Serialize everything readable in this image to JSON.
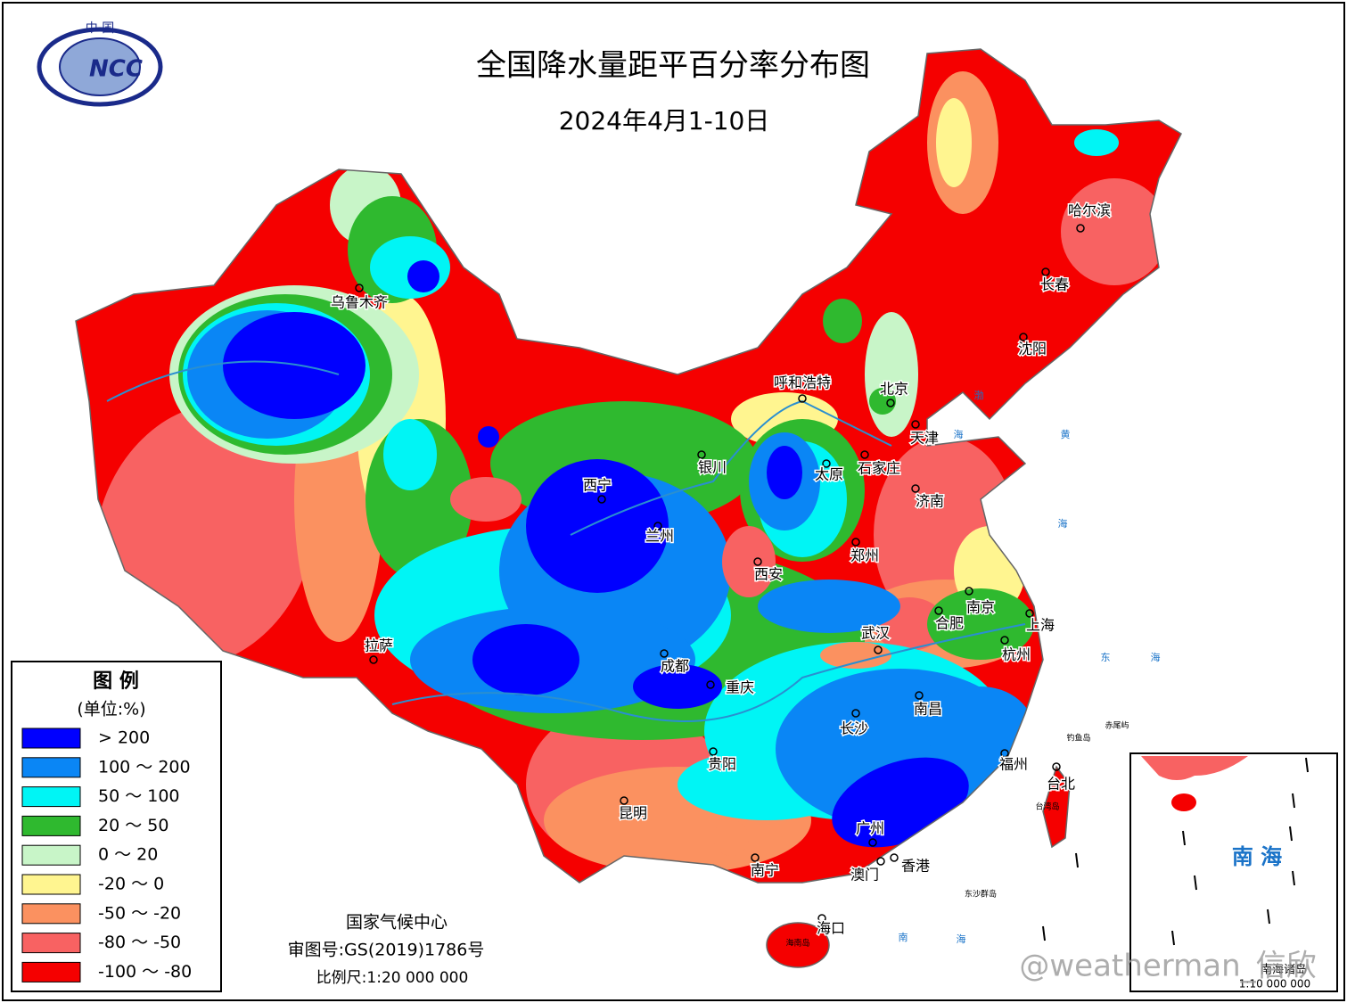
{
  "header": {
    "title": "全国降水量距平百分率分布图",
    "subtitle": "2024年4月1-10日",
    "logo_top": "中 国",
    "logo_text": "NCC"
  },
  "legend": {
    "title": "图 例",
    "unit": "(单位:%)",
    "items": [
      {
        "label": "> 200",
        "color": "#0000ff"
      },
      {
        "label": "100 ～ 200",
        "color": "#0a86f5"
      },
      {
        "label": "50 ～ 100",
        "color": "#00f5f5"
      },
      {
        "label": "20 ～ 50",
        "color": "#2fb92f"
      },
      {
        "label": "0 ～ 20",
        "color": "#c8f5c8"
      },
      {
        "label": "-20 ～ 0",
        "color": "#fff590"
      },
      {
        "label": "-50 ～ -20",
        "color": "#fb9160"
      },
      {
        "label": "-80 ～ -50",
        "color": "#f86262"
      },
      {
        "label": "-100 ～ -80",
        "color": "#f50000"
      }
    ]
  },
  "cities": [
    "乌鲁木齐",
    "哈尔滨",
    "长春",
    "沈阳",
    "呼和浩特",
    "北京",
    "天津",
    "银川",
    "太原",
    "石家庄",
    "西宁",
    "济南",
    "兰州",
    "郑州",
    "西安",
    "南京",
    "合肥",
    "上海",
    "武汉",
    "杭州",
    "拉萨",
    "成都",
    "重庆",
    "南昌",
    "长沙",
    "福州",
    "台北",
    "贵阳",
    "昆明",
    "广州",
    "南宁",
    "澳门",
    "香港",
    "海口"
  ],
  "seas": [
    "渤",
    "海",
    "黄",
    "海",
    "东",
    "海",
    "南",
    "海"
  ],
  "small_labels": [
    "钓鱼岛",
    "赤尾屿",
    "台湾岛",
    "东沙群岛",
    "海南岛"
  ],
  "footer": {
    "org": "国家气候中心",
    "approval": "审图号:GS(2019)1786号",
    "scale": "比例尺:1:20 000 000"
  },
  "inset": {
    "label": "南 海",
    "caption": "南海诸岛",
    "scale": "1:10 000 000"
  },
  "watermark": "@weatherman_信欣"
}
